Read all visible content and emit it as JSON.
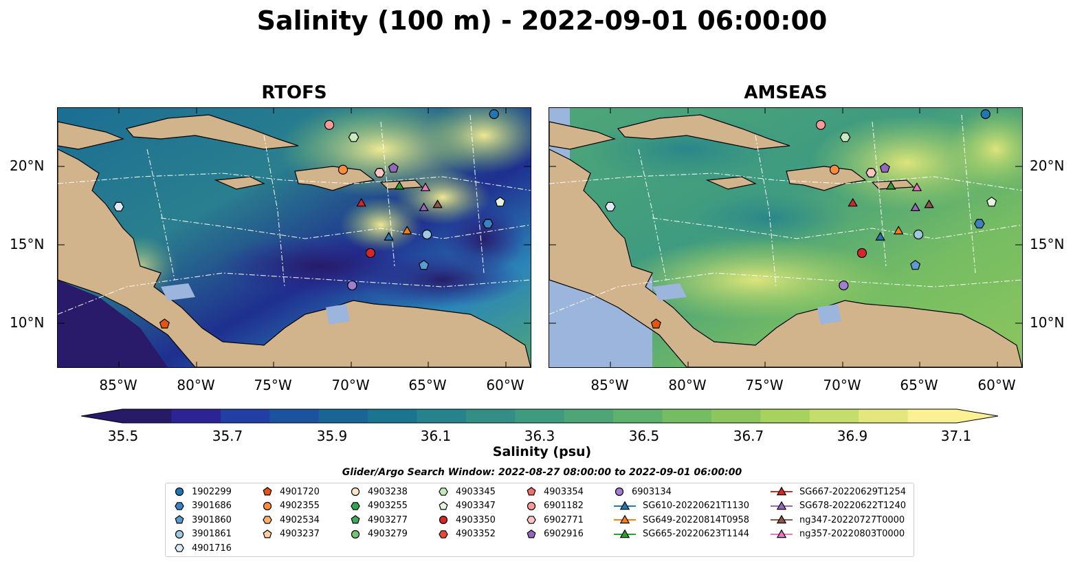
{
  "title": "Salinity (100 m) - 2022-09-01 06:00:00",
  "panels": [
    {
      "title": "RTOFS",
      "palette": "rtofs"
    },
    {
      "title": "AMSEAS",
      "palette": "amseas"
    }
  ],
  "lat_labels": [
    "20°N",
    "15°N",
    "10°N"
  ],
  "lon_labels": [
    "85°W",
    "80°W",
    "75°W",
    "70°W",
    "65°W",
    "60°W"
  ],
  "colorbar": {
    "ticks": [
      "35.5",
      "35.7",
      "35.9",
      "36.1",
      "36.3",
      "36.5",
      "36.7",
      "36.9",
      "37.1"
    ],
    "label": "Salinity (psu)",
    "colors": [
      "#271a66",
      "#2c2494",
      "#223fa5",
      "#1b53a1",
      "#186596",
      "#1b7591",
      "#26838c",
      "#338f86",
      "#3f9b80",
      "#4ea677",
      "#5fb16e",
      "#75bc63",
      "#8cc65d",
      "#a7d25e",
      "#c5dd6a",
      "#e4e87c",
      "#faf094"
    ]
  },
  "legend": {
    "title": "Glider/Argo Search Window: 2022-08-27 08:00:00 to 2022-09-01 06:00:00",
    "items": [
      {
        "label": "1902299",
        "marker": "circle",
        "color": "#1f77b4"
      },
      {
        "label": "3901686",
        "marker": "hexagon",
        "color": "#3a83c2"
      },
      {
        "label": "3901860",
        "marker": "pentagon",
        "color": "#5a9bd3"
      },
      {
        "label": "3901861",
        "marker": "circle",
        "color": "#9ecae1"
      },
      {
        "label": "4901716",
        "marker": "hexagon",
        "color": "#deebf7"
      },
      {
        "label": "4901720",
        "marker": "pentagon",
        "color": "#e6550d"
      },
      {
        "label": "4902355",
        "marker": "circle",
        "color": "#fd8d3c"
      },
      {
        "label": "4902534",
        "marker": "hexagon",
        "color": "#fdae6b"
      },
      {
        "label": "4903237",
        "marker": "pentagon",
        "color": "#fdd0a2"
      },
      {
        "label": "4903238",
        "marker": "circle",
        "color": "#fee6ce"
      },
      {
        "label": "4903255",
        "marker": "hexagon",
        "color": "#31a354"
      },
      {
        "label": "4903277",
        "marker": "pentagon",
        "color": "#41ab5d"
      },
      {
        "label": "4903279",
        "marker": "circle",
        "color": "#74c476"
      },
      {
        "label": "4903345",
        "marker": "hexagon",
        "color": "#c7e9c0"
      },
      {
        "label": "4903347",
        "marker": "pentagon",
        "color": "#e5f5e0"
      },
      {
        "label": "4903350",
        "marker": "circle",
        "color": "#d62728"
      },
      {
        "label": "4903352",
        "marker": "hexagon",
        "color": "#e34a33"
      },
      {
        "label": "4903354",
        "marker": "pentagon",
        "color": "#ef6f6c"
      },
      {
        "label": "6901182",
        "marker": "circle",
        "color": "#fb9a99"
      },
      {
        "label": "6902771",
        "marker": "hexagon",
        "color": "#fcc5c0"
      },
      {
        "label": "6902916",
        "marker": "pentagon",
        "color": "#9467bd"
      },
      {
        "label": "6903134",
        "marker": "circle",
        "color": "#a17fd0"
      },
      {
        "label": "SG610-20220621T1130",
        "marker": "triangle-line",
        "color": "#1f77b4"
      },
      {
        "label": "SG649-20220814T0958",
        "marker": "triangle-line",
        "color": "#ff7f0e"
      },
      {
        "label": "SG665-20220623T1144",
        "marker": "triangle-line",
        "color": "#2ca02c"
      },
      {
        "label": "SG667-20220629T1254",
        "marker": "triangle-line",
        "color": "#d62728"
      },
      {
        "label": "SG678-20220622T1240",
        "marker": "triangle-line",
        "color": "#9467bd"
      },
      {
        "label": "ng347-20220727T0000",
        "marker": "triangle-line",
        "color": "#8c564b"
      },
      {
        "label": "ng357-20220803T0000",
        "marker": "triangle-line",
        "color": "#e377c2"
      }
    ]
  },
  "platforms": [
    {
      "label": "1902299",
      "lon": -60.4,
      "lat": 23.6
    },
    {
      "label": "3901686",
      "lon": -60.8,
      "lat": 16.5
    },
    {
      "label": "3901860",
      "lon": -65.0,
      "lat": 13.8
    },
    {
      "label": "3901861",
      "lon": -64.8,
      "lat": 15.8
    },
    {
      "label": "4901716",
      "lon": -85.0,
      "lat": 17.6
    },
    {
      "label": "4901720",
      "lon": -82.0,
      "lat": 10.0
    },
    {
      "label": "4902355",
      "lon": -70.3,
      "lat": 20.0
    },
    {
      "label": "4903238",
      "lon": -67.9,
      "lat": 19.8
    },
    {
      "label": "4903345",
      "lon": -69.6,
      "lat": 22.1
    },
    {
      "label": "4903347",
      "lon": -60.0,
      "lat": 17.9
    },
    {
      "label": "4903350",
      "lon": -68.5,
      "lat": 14.6
    },
    {
      "label": "6901182",
      "lon": -71.2,
      "lat": 22.9
    },
    {
      "label": "6902771",
      "lon": -67.9,
      "lat": 19.8
    },
    {
      "label": "6902916",
      "lon": -67.0,
      "lat": 20.1
    },
    {
      "label": "6903134",
      "lon": -69.7,
      "lat": 12.5
    },
    {
      "label": "SG610-20220621T1130",
      "lon": -67.3,
      "lat": 15.6
    },
    {
      "label": "SG649-20220814T0958",
      "lon": -66.1,
      "lat": 16.0
    },
    {
      "label": "SG665-20220623T1144",
      "lon": -66.6,
      "lat": 18.9
    },
    {
      "label": "SG667-20220629T1254",
      "lon": -69.1,
      "lat": 17.8
    },
    {
      "label": "SG678-20220622T1240",
      "lon": -65.0,
      "lat": 17.5
    },
    {
      "label": "ng347-20220727T0000",
      "lon": -64.1,
      "lat": 17.7
    },
    {
      "label": "ng357-20220803T0000",
      "lon": -64.9,
      "lat": 18.8
    }
  ]
}
